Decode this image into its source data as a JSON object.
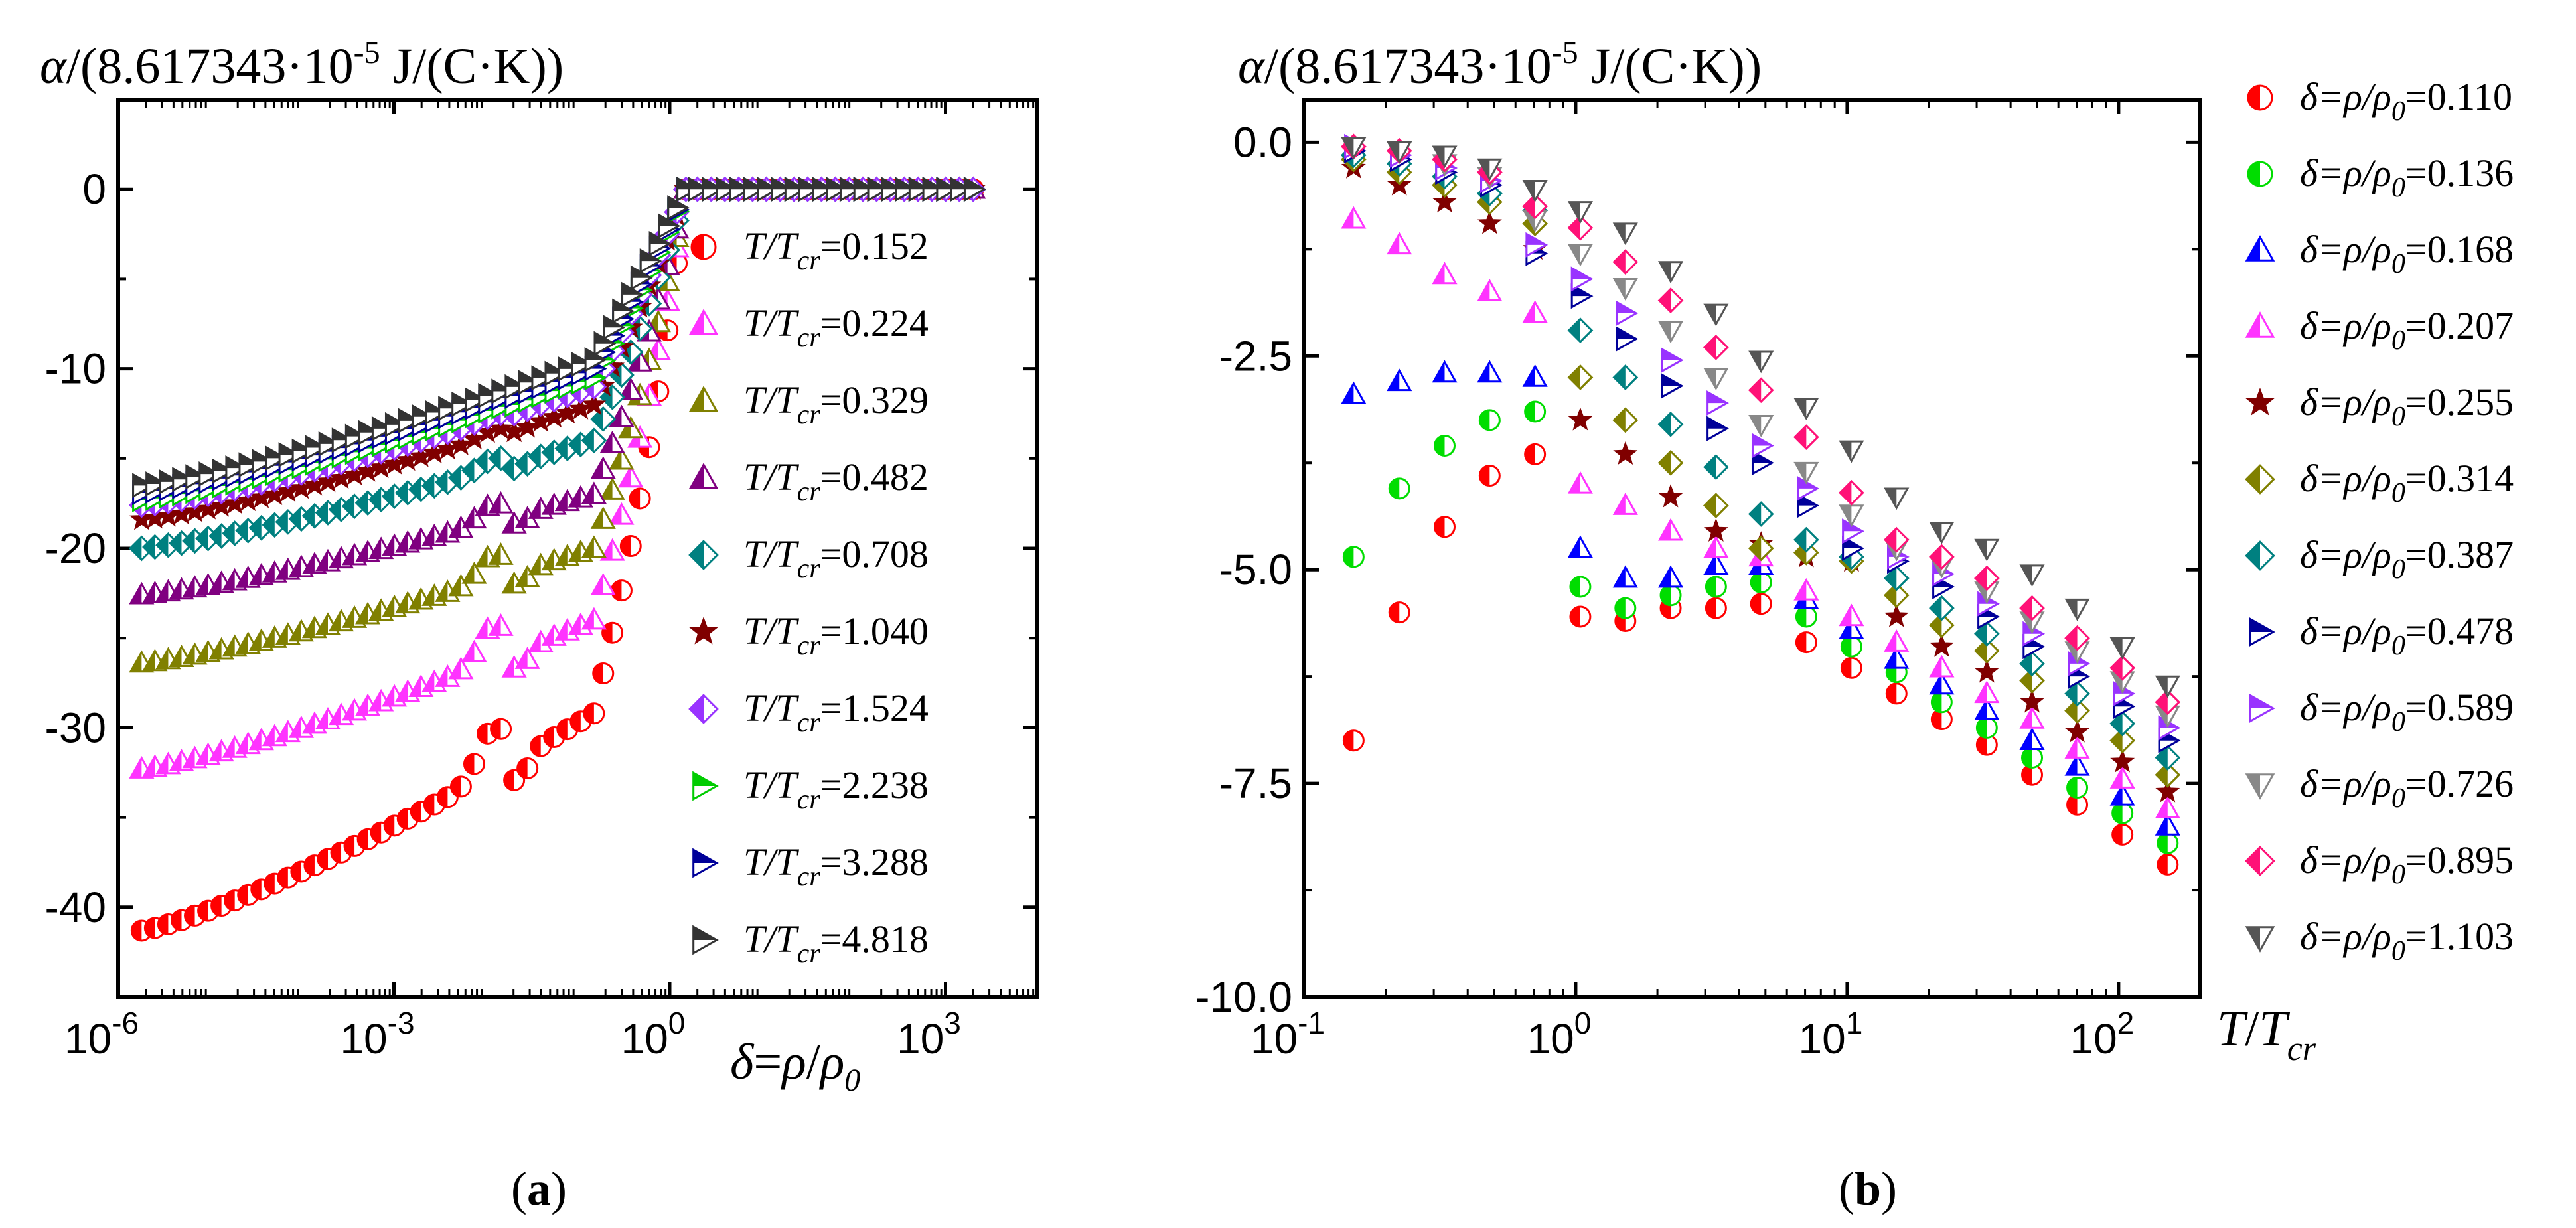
{
  "chart_data": [
    {
      "type": "scatter",
      "panel": "a",
      "caption_open": "(",
      "caption_letter": "a",
      "caption_close": ")",
      "ylabel_prefix": "α",
      "ylabel_rest": "/(8.617343·10",
      "ylabel_exp": "-5",
      "ylabel_unit": " J/(C·K))",
      "xlabel": "δ=ρ/ρ0",
      "xscale": "log",
      "xlim": [
        1e-06,
        10000.0
      ],
      "ylim": [
        -45,
        5
      ],
      "x_ticks": [
        {
          "value": 1e-06,
          "base": "10",
          "exp": "-6"
        },
        {
          "value": 0.001,
          "base": "10",
          "exp": "-3"
        },
        {
          "value": 1,
          "base": "10",
          "exp": "0"
        },
        {
          "value": 1000.0,
          "base": "10",
          "exp": "3"
        }
      ],
      "y_ticks": [
        {
          "value": 0,
          "label": "0"
        },
        {
          "value": -10,
          "label": "-10"
        },
        {
          "value": -20,
          "label": "-20"
        },
        {
          "value": -30,
          "label": "-30"
        },
        {
          "value": -40,
          "label": "-40"
        }
      ],
      "legend_position": "right",
      "legend_prefix": "T/T",
      "legend_sub": "cr",
      "series": [
        {
          "name": "T/Tcr=0.152",
          "value": "=0.152",
          "marker": "circle-half",
          "color": "#ff0000",
          "y_start": -41.3,
          "y_end": -29.2,
          "bump": 2.5,
          "rise_end": -7
        },
        {
          "name": "T/Tcr=0.224",
          "value": "=0.224",
          "marker": "triangle-half",
          "color": "#ff33ff",
          "y_start": -32.3,
          "y_end": -24,
          "bump": 2.0,
          "rise_end": -5
        },
        {
          "name": "T/Tcr=0.329",
          "value": "=0.329",
          "marker": "triangle-half",
          "color": "#808000",
          "y_start": -26.4,
          "y_end": -20,
          "bump": 1.4,
          "rise_end": -4
        },
        {
          "name": "T/Tcr=0.482",
          "value": "=0.482",
          "marker": "triangle-half",
          "color": "#800080",
          "y_start": -22.6,
          "y_end": -17,
          "bump": 1.0,
          "rise_end": -3
        },
        {
          "name": "T/Tcr=0.708",
          "value": "=0.708",
          "marker": "diamond-half",
          "color": "#008080",
          "y_start": -20.0,
          "y_end": -14,
          "bump": 0.6,
          "rise_end": -2
        },
        {
          "name": "T/Tcr=1.040",
          "value": "=1.040",
          "marker": "star",
          "color": "#800000",
          "y_start": -18.4,
          "y_end": -12,
          "bump": 0.3,
          "rise_end": -1.5
        },
        {
          "name": "T/Tcr=1.524",
          "value": "=1.524",
          "marker": "diamond-half",
          "color": "#9933ff",
          "y_start": -17.6,
          "y_end": -11,
          "bump": 0.2,
          "rise_end": -1
        },
        {
          "name": "T/Tcr=2.238",
          "value": "=2.238",
          "marker": "triangle-right-half",
          "color": "#00cc00",
          "y_start": -17.3,
          "y_end": -10.5,
          "bump": 0.1,
          "rise_end": -1
        },
        {
          "name": "T/Tcr=3.288",
          "value": "=3.288",
          "marker": "triangle-right-half",
          "color": "#000099",
          "y_start": -16.9,
          "y_end": -10,
          "bump": 0.1,
          "rise_end": -0.8
        },
        {
          "name": "T/Tcr=4.818",
          "value": "=4.818",
          "marker": "triangle-right-half",
          "color": "#333333",
          "y_start": -16.5,
          "y_end": -9.5,
          "bump": 0.0,
          "rise_end": -0.5
        }
      ]
    },
    {
      "type": "scatter",
      "panel": "b",
      "caption_open": "(",
      "caption_letter": "b",
      "caption_close": ")",
      "ylabel_prefix": "α",
      "ylabel_rest": "/(8.617343·10",
      "ylabel_exp": "-5",
      "ylabel_unit": " J/(C·K))",
      "xlabel": "T/Tcr",
      "xscale": "log",
      "xlim": [
        0.1,
        200
      ],
      "ylim": [
        -10,
        0.5
      ],
      "x_ticks": [
        {
          "value": 0.1,
          "base": "10",
          "exp": "-1"
        },
        {
          "value": 1,
          "base": "10",
          "exp": "0"
        },
        {
          "value": 10,
          "base": "10",
          "exp": "1"
        },
        {
          "value": 100,
          "base": "10",
          "exp": "2"
        }
      ],
      "y_ticks": [
        {
          "value": 0,
          "label": "0.0"
        },
        {
          "value": -2.5,
          "label": "-2.5"
        },
        {
          "value": -5,
          "label": "-5.0"
        },
        {
          "value": -7.5,
          "label": "-7.5"
        },
        {
          "value": -10,
          "label": "-10.0"
        }
      ],
      "x_values": [
        0.152,
        0.224,
        0.329,
        0.482,
        0.708,
        1.04,
        1.524,
        2.238,
        3.288,
        4.818,
        7.07,
        10.37,
        15.2,
        22.3,
        32.7,
        48,
        70.4,
        103.3,
        151.6
      ],
      "legend_position": "right",
      "legend_prefix": "δ=ρ/ρ",
      "legend_sub": "0",
      "series": [
        {
          "name": "δ=ρ/ρ0=0.110",
          "value": "=0.110",
          "marker": "circle-half",
          "color": "#ff0000",
          "values": [
            -7.0,
            -5.5,
            -4.5,
            -3.9,
            -3.65,
            -5.55,
            -5.6,
            -5.45,
            -5.45,
            -5.4,
            -5.85,
            -6.15,
            -6.45,
            -6.75,
            -7.05,
            -7.4,
            -7.75,
            -8.1,
            -8.45
          ]
        },
        {
          "name": "δ=ρ/ρ0=0.136",
          "value": "=0.136",
          "marker": "circle-half",
          "color": "#00dd00",
          "values": [
            -4.85,
            -4.05,
            -3.55,
            -3.25,
            -3.15,
            -5.2,
            -5.45,
            -5.3,
            -5.2,
            -5.15,
            -5.55,
            -5.9,
            -6.2,
            -6.55,
            -6.85,
            -7.2,
            -7.55,
            -7.85,
            -8.2
          ]
        },
        {
          "name": "δ=ρ/ρ0=0.168",
          "value": "=0.168",
          "marker": "triangle-half",
          "color": "#0000ff",
          "values": [
            -2.95,
            -2.8,
            -2.7,
            -2.7,
            -2.75,
            -4.75,
            -5.1,
            -5.1,
            -4.95,
            -4.95,
            -5.35,
            -5.7,
            -6.05,
            -6.35,
            -6.65,
            -7.0,
            -7.3,
            -7.65,
            -8.0
          ]
        },
        {
          "name": "δ=ρ/ρ0=0.207",
          "value": "=0.207",
          "marker": "triangle-half",
          "color": "#ff33ff",
          "values": [
            -0.9,
            -1.2,
            -1.55,
            -1.75,
            -2.0,
            -4.0,
            -4.25,
            -4.55,
            -4.75,
            -4.85,
            -5.25,
            -5.55,
            -5.85,
            -6.15,
            -6.45,
            -6.75,
            -7.1,
            -7.45,
            -7.8
          ]
        },
        {
          "name": "δ=ρ/ρ0=0.255",
          "value": "=0.255",
          "marker": "star",
          "color": "#800000",
          "values": [
            -0.3,
            -0.5,
            -0.7,
            -0.95,
            -1.25,
            -3.25,
            -3.65,
            -4.15,
            -4.55,
            -4.7,
            -4.85,
            -4.9,
            -5.55,
            -5.9,
            -6.2,
            -6.55,
            -6.9,
            -7.25,
            -7.6
          ]
        },
        {
          "name": "δ=ρ/ρ0=0.314",
          "value": "=0.314",
          "marker": "diamond-half",
          "color": "#808000",
          "values": [
            -0.2,
            -0.35,
            -0.5,
            -0.7,
            -0.95,
            -2.75,
            -3.25,
            -3.75,
            -4.25,
            -4.75,
            -4.8,
            -4.9,
            -5.3,
            -5.65,
            -5.95,
            -6.3,
            -6.65,
            -7.0,
            -7.4
          ]
        },
        {
          "name": "δ=ρ/ρ0=0.387",
          "value": "=0.387",
          "marker": "diamond-half",
          "color": "#008080",
          "values": [
            -0.15,
            -0.25,
            -0.4,
            -0.6,
            -0.8,
            -2.2,
            -2.75,
            -3.3,
            -3.8,
            -4.35,
            -4.65,
            -4.85,
            -5.1,
            -5.45,
            -5.75,
            -6.1,
            -6.45,
            -6.8,
            -7.2
          ]
        },
        {
          "name": "δ=ρ/ρ0=0.478",
          "value": "=0.478",
          "marker": "triangle-right-half",
          "color": "#000099",
          "values": [
            -0.1,
            -0.2,
            -0.35,
            -0.5,
            -1.3,
            -1.8,
            -2.3,
            -2.85,
            -3.35,
            -3.75,
            -4.25,
            -4.75,
            -4.9,
            -5.2,
            -5.55,
            -5.9,
            -6.25,
            -6.6,
            -7.0
          ]
        },
        {
          "name": "δ=ρ/ρ0=0.589",
          "value": "=0.589",
          "marker": "triangle-right-half",
          "color": "#9933ff",
          "values": [
            -0.05,
            -0.15,
            -0.3,
            -0.45,
            -1.2,
            -1.6,
            -2.0,
            -2.55,
            -3.05,
            -3.55,
            -4.05,
            -4.55,
            -4.85,
            -5.05,
            -5.4,
            -5.75,
            -6.1,
            -6.45,
            -6.85
          ]
        },
        {
          "name": "δ=ρ/ρ0=0.726",
          "value": "=0.726",
          "marker": "triangle-down-half",
          "color": "#888888",
          "values": [
            -0.05,
            -0.1,
            -0.25,
            -0.4,
            -0.9,
            -1.3,
            -1.7,
            -2.2,
            -2.75,
            -3.3,
            -3.85,
            -4.35,
            -4.75,
            -4.95,
            -5.25,
            -5.6,
            -5.95,
            -6.3,
            -6.7
          ]
        },
        {
          "name": "δ=ρ/ρ0=0.895",
          "value": "=0.895",
          "marker": "diamond-half",
          "color": "#ff1177",
          "values": [
            -0.05,
            -0.1,
            -0.2,
            -0.35,
            -0.75,
            -1.0,
            -1.4,
            -1.85,
            -2.4,
            -2.9,
            -3.45,
            -4.1,
            -4.65,
            -4.85,
            -5.1,
            -5.45,
            -5.8,
            -6.15,
            -6.55
          ]
        },
        {
          "name": "δ=ρ/ρ0=1.103",
          "value": "=1.103",
          "marker": "triangle-down-half",
          "color": "#555555",
          "values": [
            -0.05,
            -0.1,
            -0.15,
            -0.3,
            -0.55,
            -0.8,
            -1.05,
            -1.5,
            -2.0,
            -2.55,
            -3.1,
            -3.6,
            -4.15,
            -4.55,
            -4.75,
            -5.05,
            -5.45,
            -5.9,
            -6.35
          ]
        }
      ]
    }
  ]
}
